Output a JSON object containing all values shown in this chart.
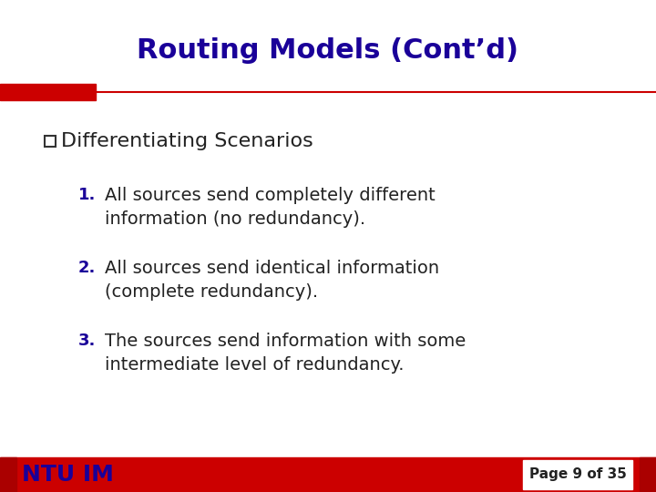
{
  "title": "Routing Models (Cont’d)",
  "title_color": "#1a0099",
  "title_fontsize": 22,
  "background_color": "#ffffff",
  "bullet_text": "Differentiating Scenarios",
  "bullet_fontsize": 16,
  "bullet_color": "#222222",
  "items": [
    "All sources send completely different\ninformation (no redundancy).",
    "All sources send identical information\n(complete redundancy).",
    "The sources send information with some\nintermediate level of redundancy."
  ],
  "item_fontsize": 14,
  "item_color": "#222222",
  "number_color": "#1a0099",
  "red_color": "#cc0000",
  "footer_text": "NTU IM",
  "footer_text_color": "#1a0099",
  "footer_fontsize": 18,
  "page_text": "Page 9 of 35",
  "page_fontsize": 11
}
